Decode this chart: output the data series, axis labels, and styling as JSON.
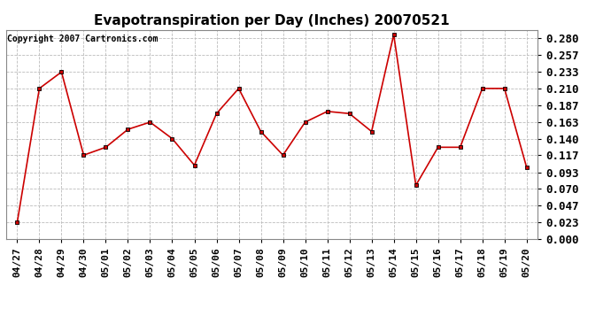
{
  "title": "Evapotranspiration per Day (Inches) 20070521",
  "copyright_text": "Copyright 2007 Cartronics.com",
  "labels": [
    "04/27",
    "04/28",
    "04/29",
    "04/30",
    "05/01",
    "05/02",
    "05/03",
    "05/04",
    "05/05",
    "05/06",
    "05/07",
    "05/08",
    "05/09",
    "05/10",
    "05/11",
    "05/12",
    "05/13",
    "05/14",
    "05/15",
    "05/16",
    "05/17",
    "05/18",
    "05/19",
    "05/20"
  ],
  "values": [
    0.023,
    0.21,
    0.233,
    0.117,
    0.128,
    0.153,
    0.163,
    0.14,
    0.103,
    0.175,
    0.21,
    0.15,
    0.117,
    0.163,
    0.178,
    0.175,
    0.15,
    0.285,
    0.075,
    0.128,
    0.128,
    0.21,
    0.21,
    0.1
  ],
  "line_color": "#cc0000",
  "marker": "s",
  "marker_size": 3,
  "marker_color": "#cc0000",
  "bg_color": "#ffffff",
  "grid_color": "#bbbbbb",
  "ylim": [
    0.0,
    0.2917
  ],
  "yticks": [
    0.0,
    0.023,
    0.047,
    0.07,
    0.093,
    0.117,
    0.14,
    0.163,
    0.187,
    0.21,
    0.233,
    0.257,
    0.28
  ],
  "title_fontsize": 11,
  "copyright_fontsize": 7,
  "tick_fontsize": 8,
  "ytick_fontsize": 9
}
